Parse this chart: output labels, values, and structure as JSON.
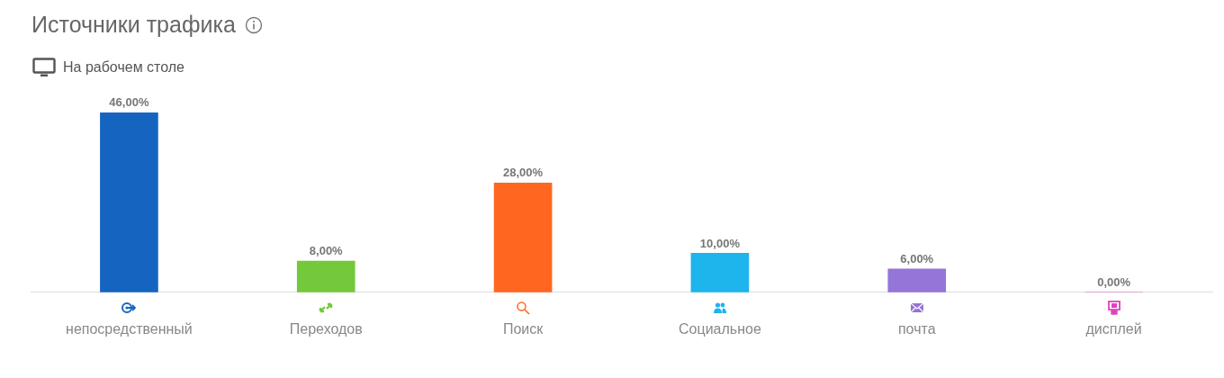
{
  "chart_data": {
    "type": "bar",
    "title": "Источники трафика",
    "subtitle": "На рабочем столе",
    "categories": [
      "непосредственный",
      "Переходов",
      "Поиск",
      "Социальное",
      "почта",
      "дисплей"
    ],
    "values": [
      46,
      8,
      28,
      10,
      6,
      0
    ],
    "colors": [
      "#1565c0",
      "#74c83c",
      "#ff6620",
      "#1eb4ec",
      "#9575d8",
      "#e040c0"
    ],
    "value_labels": [
      "46,00%",
      "8,00%",
      "28,00%",
      "10,00%",
      "6,00%",
      "0,00%"
    ],
    "grid": false,
    "legend": false
  }
}
